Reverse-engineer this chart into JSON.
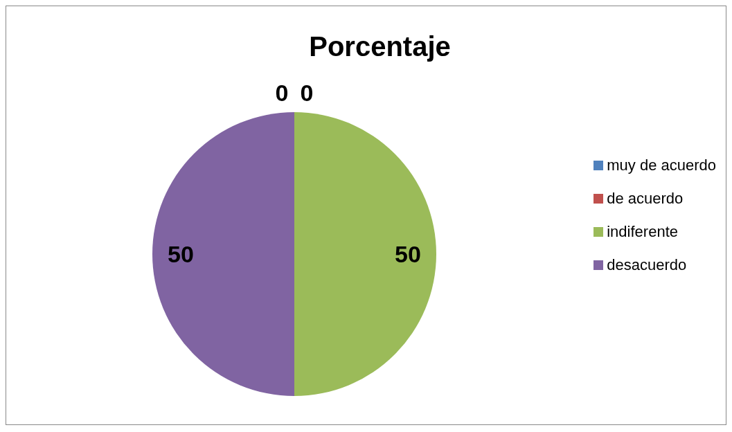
{
  "chart_data": {
    "type": "pie",
    "title": "Porcentaje",
    "categories": [
      "muy de acuerdo",
      "de acuerdo",
      "indiferente",
      "desacuerdo"
    ],
    "values": [
      0,
      0,
      50,
      50
    ],
    "value_labels": [
      "0",
      "0",
      "50",
      "50"
    ],
    "colors": [
      "#4f81bd",
      "#c0504d",
      "#9bbb59",
      "#8064a2"
    ],
    "legend": "right"
  }
}
